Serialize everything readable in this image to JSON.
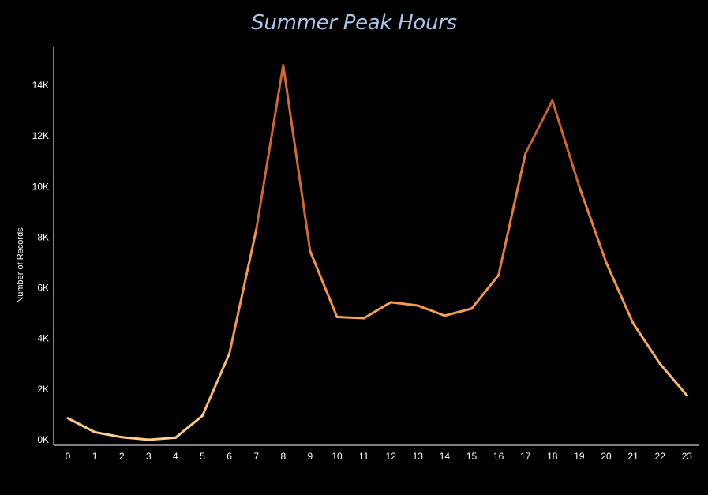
{
  "chart_data": {
    "type": "line",
    "title": "Summer Peak Hours",
    "xlabel": "",
    "ylabel": "Number of Records",
    "x": [
      0,
      1,
      2,
      3,
      4,
      5,
      6,
      7,
      8,
      9,
      10,
      11,
      12,
      13,
      14,
      15,
      16,
      17,
      18,
      19,
      20,
      21,
      22,
      23
    ],
    "x_tick_labels": [
      "0",
      "1",
      "2",
      "3",
      "4",
      "5",
      "6",
      "7",
      "8",
      "9",
      "10",
      "11",
      "12",
      "13",
      "14",
      "15",
      "16",
      "17",
      "18",
      "19",
      "20",
      "21",
      "22",
      "23"
    ],
    "series": [
      {
        "values": [
          850,
          300,
          100,
          0,
          80,
          950,
          3400,
          8300,
          14800,
          7450,
          4850,
          4800,
          5430,
          5300,
          4900,
          5180,
          6500,
          11300,
          13400,
          10000,
          7000,
          4600,
          3000,
          1750
        ]
      }
    ],
    "ylim": [
      0,
      15500
    ],
    "y_ticks": [
      0,
      2000,
      4000,
      6000,
      8000,
      10000,
      12000,
      14000
    ],
    "y_tick_labels": [
      "0K",
      "2K",
      "4K",
      "6K",
      "8K",
      "10K",
      "12K",
      "14K"
    ],
    "grid": false,
    "line_color_scale": {
      "low": "#fdd08a",
      "mid": "#f0893a",
      "high": "#b5482a"
    }
  }
}
